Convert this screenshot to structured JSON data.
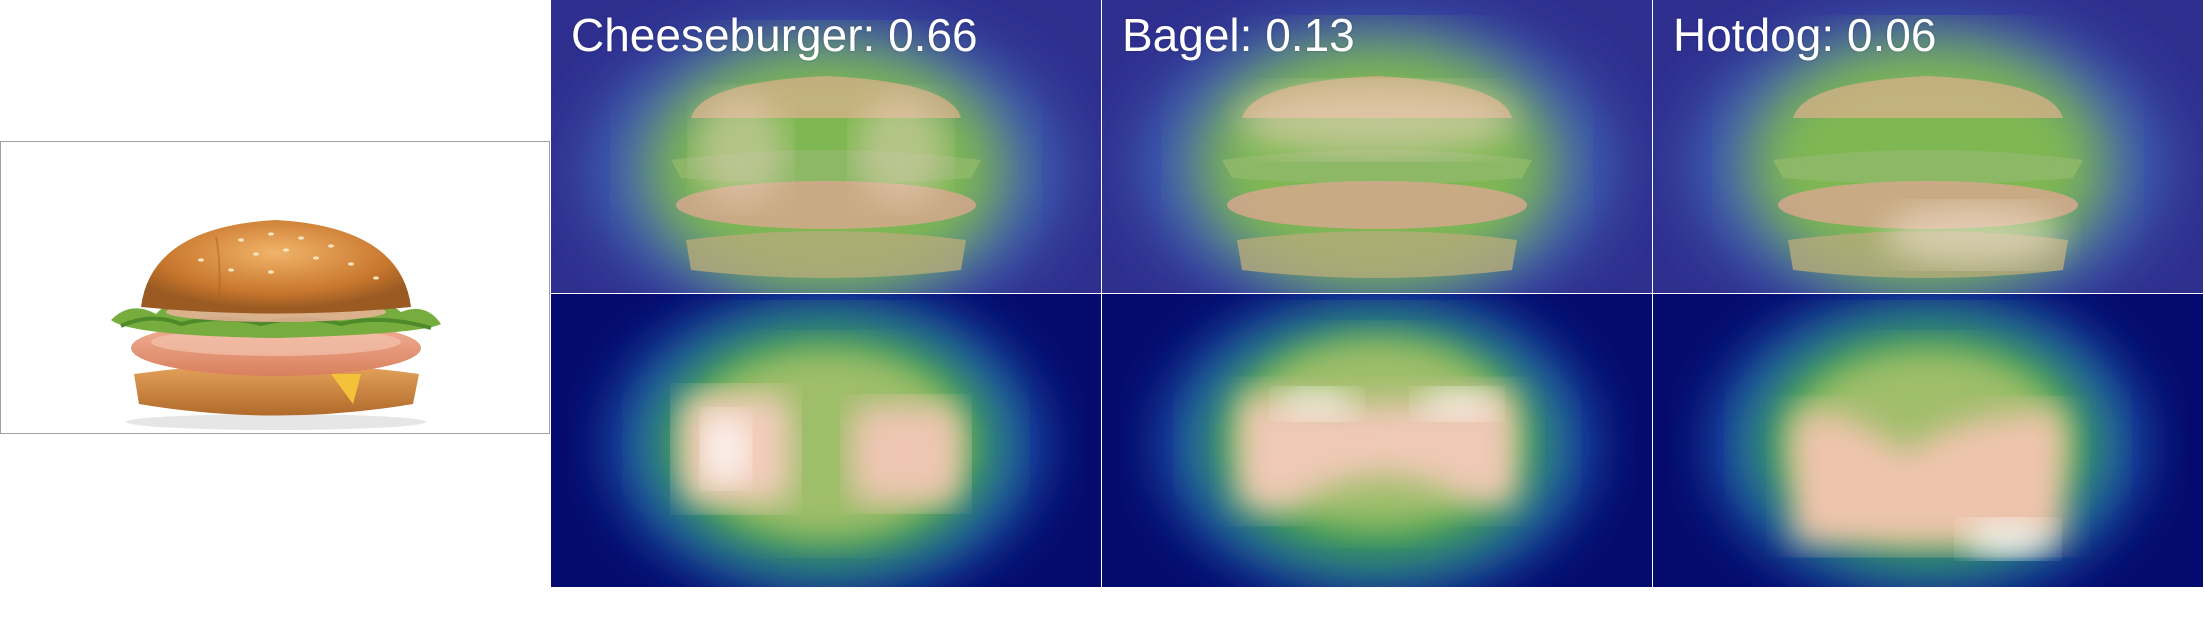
{
  "original": {
    "alt": "burger"
  },
  "overlays": [
    {
      "label": "Cheeseburger: 0.66"
    },
    {
      "label": "Bagel: 0.13"
    },
    {
      "label": "Hotdog: 0.06"
    }
  ],
  "colors": {
    "cmap_low": "#0a0f7a",
    "cmap_mid": "#3fa24a",
    "cmap_high": "#fbe7dc",
    "bun": "#d08a3c",
    "lettuce": "#6fa63b",
    "patty": "#e59a7a",
    "cheese": "#f3c23a"
  }
}
